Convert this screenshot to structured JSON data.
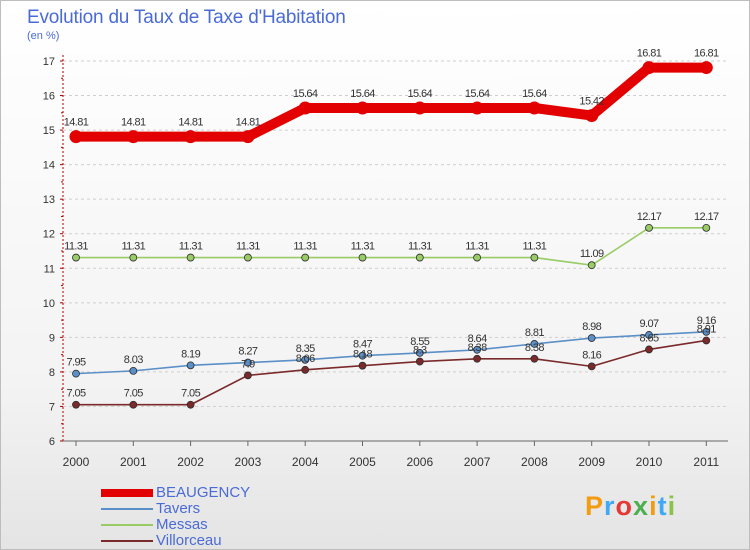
{
  "chart_data": {
    "type": "line",
    "title": "Evolution du Taux de Taxe d'Habitation",
    "ylabel": "(en %)",
    "xlabel": "",
    "x": [
      "2000",
      "2001",
      "2002",
      "2003",
      "2004",
      "2005",
      "2006",
      "2007",
      "2008",
      "2009",
      "2010",
      "2011"
    ],
    "ylim": [
      6,
      17
    ],
    "yticks": [
      "6",
      "7",
      "8",
      "9",
      "10",
      "11",
      "12",
      "13",
      "14",
      "15",
      "16",
      "17"
    ],
    "grid": "horizontal dashed",
    "legend_position": "bottom-left",
    "series": [
      {
        "name": "BEAUGENCY",
        "color": "#e30000",
        "values": [
          14.81,
          14.81,
          14.81,
          14.81,
          15.64,
          15.64,
          15.64,
          15.64,
          15.64,
          15.42,
          16.81,
          16.81
        ],
        "labels": [
          "14.81",
          "14.81",
          "14.81",
          "14.81",
          "15.64",
          "15.64",
          "15.64",
          "15.64",
          "15.64",
          "15.42",
          "16.81",
          "16.81"
        ]
      },
      {
        "name": "Tavers",
        "color": "#5b8fc7",
        "values": [
          7.95,
          8.03,
          8.19,
          8.27,
          8.35,
          8.47,
          8.55,
          8.64,
          8.81,
          8.98,
          9.07,
          9.16
        ],
        "labels": [
          "7.95",
          "8.03",
          "8.19",
          "8.27",
          "8.35",
          "8.47",
          "8.55",
          "8.64",
          "8.81",
          "8.98",
          "9.07",
          "9.16"
        ]
      },
      {
        "name": "Messas",
        "color": "#99cc66",
        "values": [
          11.31,
          11.31,
          11.31,
          11.31,
          11.31,
          11.31,
          11.31,
          11.31,
          11.31,
          11.09,
          12.17,
          12.17
        ],
        "labels": [
          "11.31",
          "11.31",
          "11.31",
          "11.31",
          "11.31",
          "11.31",
          "11.31",
          "11.31",
          "11.31",
          "11.09",
          "12.17",
          "12.17"
        ]
      },
      {
        "name": "Villorceau",
        "color": "#7a2a2a",
        "values": [
          7.05,
          7.05,
          7.05,
          7.9,
          8.06,
          8.18,
          8.3,
          8.38,
          8.38,
          8.16,
          8.65,
          8.91
        ],
        "labels": [
          "7.05",
          "7.05",
          "7.05",
          "7.9",
          "8.06",
          "8.18",
          "8.3",
          "8.38",
          "8.38",
          "8.16",
          "8.65",
          "8.91"
        ]
      }
    ]
  },
  "logo": {
    "text": "Proxiti",
    "letters": [
      "P",
      "r",
      "o",
      "x",
      "i",
      "t",
      "i"
    ],
    "colors": [
      "#f39c12",
      "#3fa9f5",
      "#e53935",
      "#4caf50",
      "#f39c12",
      "#3fa9f5",
      "#8bc34a"
    ]
  }
}
